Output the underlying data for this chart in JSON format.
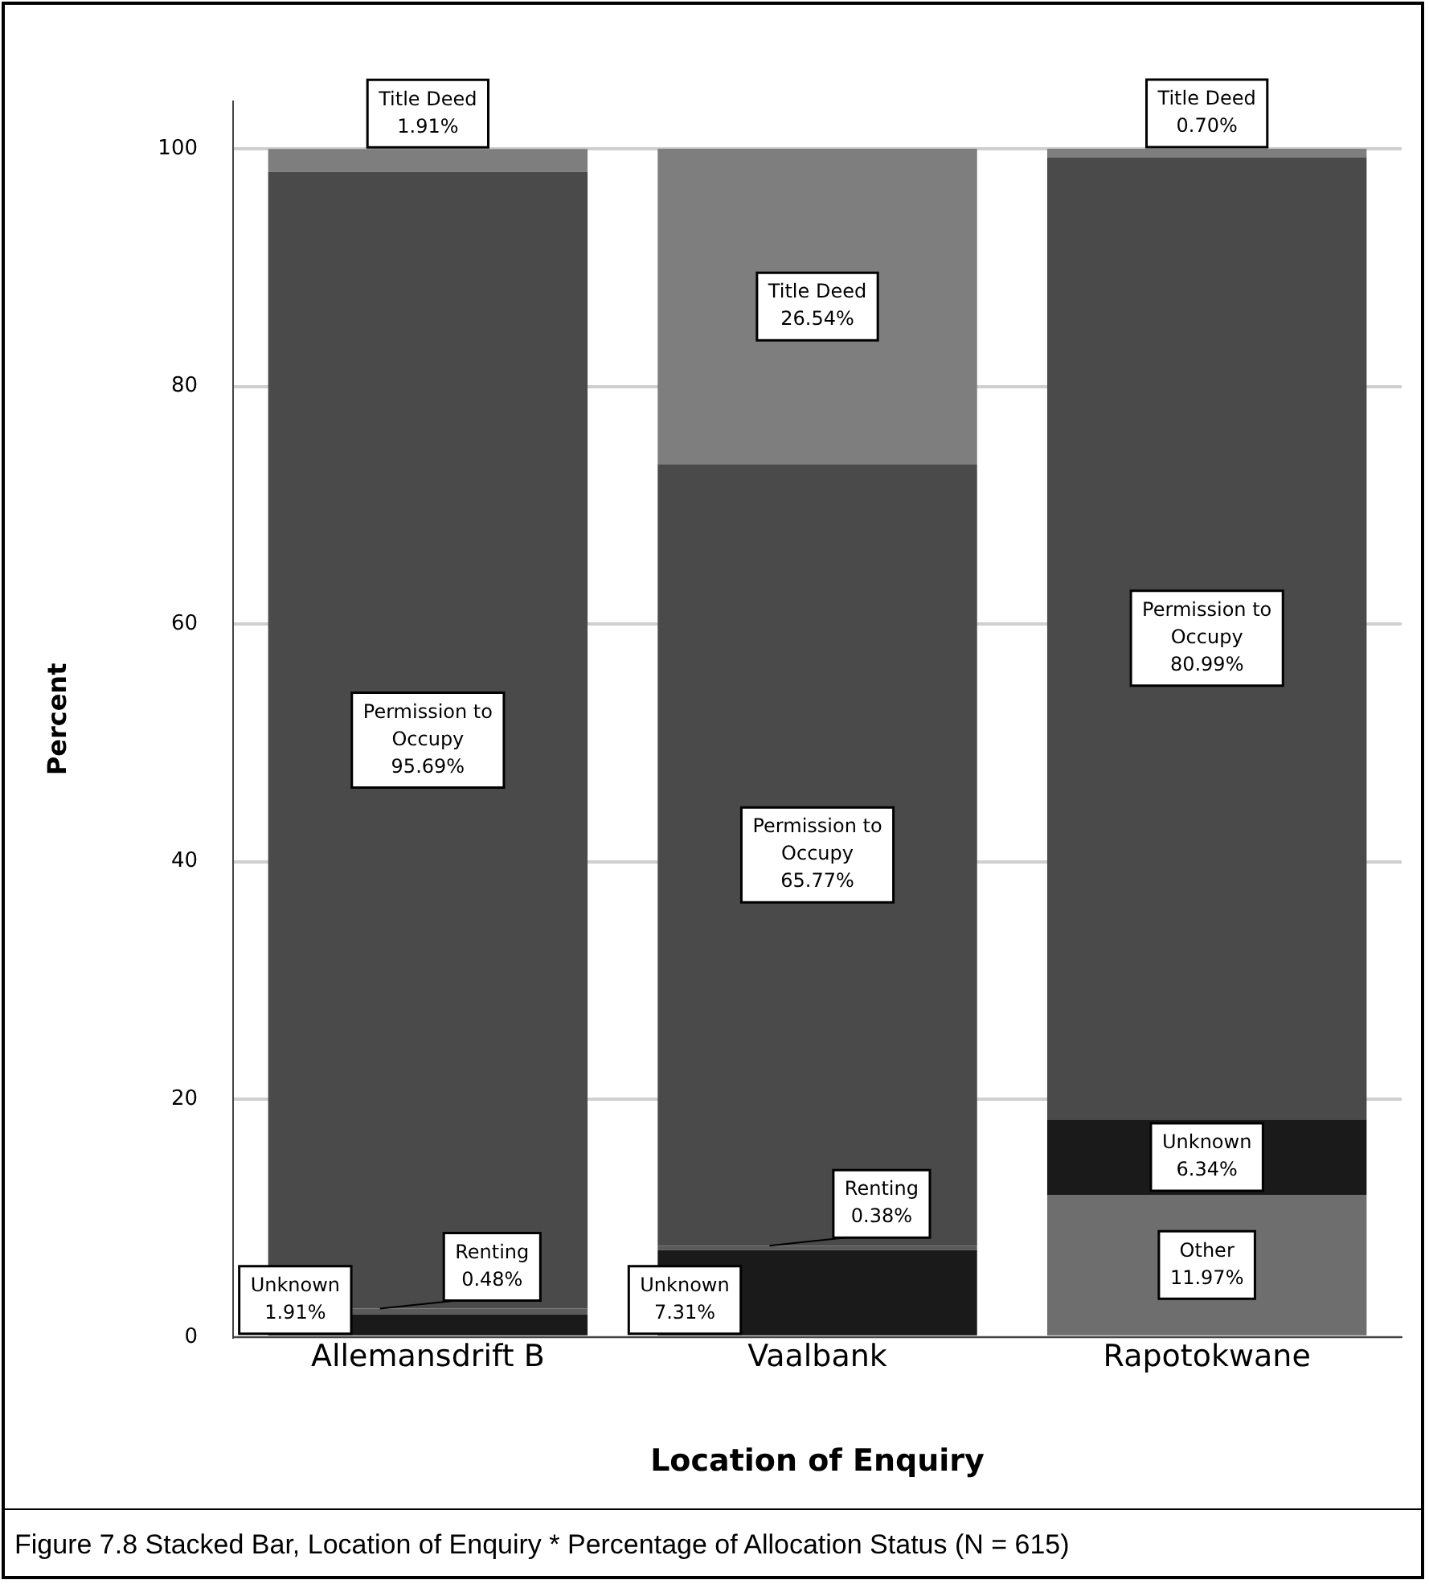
{
  "chart_data": {
    "type": "bar",
    "stacked": true,
    "xlabel": "Location of Enquiry",
    "ylabel": "Percent",
    "categories": [
      "Allemansdrift B",
      "Vaalbank",
      "Rapotokwane"
    ],
    "series": [
      {
        "name": "Other",
        "color": "#6e6e6e",
        "values": [
          null,
          null,
          11.97
        ],
        "value_labels": [
          null,
          null,
          "11.97%"
        ]
      },
      {
        "name": "Unknown",
        "color": "#1a1a1a",
        "values": [
          1.91,
          7.31,
          6.34
        ],
        "value_labels": [
          "1.91%",
          "7.31%",
          "6.34%"
        ]
      },
      {
        "name": "Renting",
        "color": "#5a5a5a",
        "values": [
          0.48,
          0.38,
          null
        ],
        "value_labels": [
          "0.48%",
          "0.38%",
          null
        ]
      },
      {
        "name": "Permission to Occupy",
        "color": "#4a4a4a",
        "values": [
          95.69,
          65.77,
          80.99
        ],
        "value_labels": [
          "95.69%",
          "65.77%",
          "80.99%"
        ]
      },
      {
        "name": "Title Deed",
        "color": "#7e7e7e",
        "values": [
          1.91,
          26.54,
          0.7
        ],
        "value_labels": [
          "1.91%",
          "26.54%",
          "0.70%"
        ]
      }
    ],
    "ylim": [
      0,
      104
    ],
    "yticks": [
      0,
      20,
      40,
      60,
      80,
      100
    ],
    "grid": "y",
    "legend": false,
    "annotations": [
      "Figure 7.8 Stacked Bar, Location of Enquiry * Percentage of Allocation Status (N = 615)"
    ]
  }
}
